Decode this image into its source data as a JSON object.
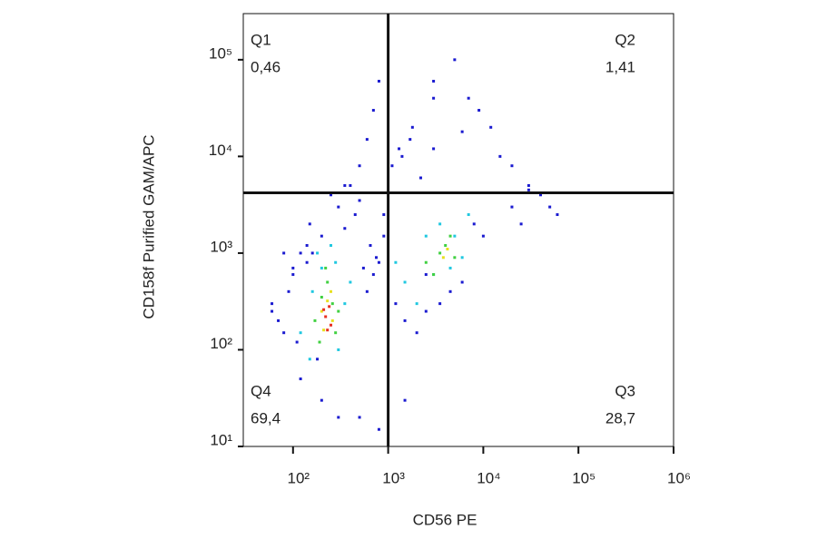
{
  "chart_data": {
    "type": "scatter",
    "x_label": "CD56 PE",
    "y_label": "CD158f Purified GAM/APC",
    "xscale": "log",
    "yscale": "log",
    "xlim": [
      30,
      1000000
    ],
    "ylim": [
      10,
      300000
    ],
    "xticks": [
      {
        "value": 100,
        "label": "10²"
      },
      {
        "value": 1000,
        "label": "10³"
      },
      {
        "value": 10000,
        "label": "10⁴"
      },
      {
        "value": 100000,
        "label": "10⁵"
      },
      {
        "value": 1000000,
        "label": "10⁶"
      }
    ],
    "yticks": [
      {
        "value": 10,
        "label": "10¹"
      },
      {
        "value": 100,
        "label": "10²"
      },
      {
        "value": 1000,
        "label": "10³"
      },
      {
        "value": 10000,
        "label": "10⁴"
      },
      {
        "value": 100000,
        "label": "10⁵"
      }
    ],
    "gate_x": 1000,
    "gate_y": 4200,
    "quadrants": {
      "names": [
        "Q1",
        "Q2",
        "Q3",
        "Q4"
      ],
      "values": [
        0.46,
        1.41,
        28.7,
        69.4
      ],
      "value_labels": [
        "0,46",
        "1,41",
        "28,7",
        "69,4"
      ]
    },
    "series": [
      {
        "color": "#1a1ad0",
        "x": [
          60,
          80,
          100,
          120,
          150,
          180,
          300,
          400,
          500,
          600,
          700,
          800,
          900,
          90,
          70,
          110,
          140,
          350,
          450,
          550,
          650,
          750,
          1200,
          1500,
          2000,
          2500,
          3000,
          5000,
          7000,
          9000,
          12000,
          15000,
          20000,
          30000,
          40000,
          50000,
          60000,
          1100,
          1300,
          1700,
          2200,
          8000,
          10000,
          600,
          700,
          800,
          900,
          500,
          350,
          250,
          200,
          160,
          140,
          120,
          2500,
          3500,
          4500,
          6000,
          3000,
          1800,
          1400,
          20000,
          30000,
          25000,
          500,
          800,
          1500,
          3000,
          6000,
          100,
          80,
          60,
          200,
          300
        ],
        "values": [
          300,
          150,
          600,
          1000,
          2000,
          80,
          3000,
          5000,
          8000,
          15000,
          30000,
          60000,
          1500,
          400,
          200,
          120,
          1200,
          1800,
          2500,
          700,
          1200,
          900,
          300,
          200,
          150,
          250,
          60000,
          100000,
          40000,
          30000,
          20000,
          10000,
          8000,
          5000,
          4000,
          3000,
          2500,
          8000,
          12000,
          15000,
          6000,
          2000,
          1500,
          400,
          600,
          800,
          2500,
          3500,
          5000,
          4000,
          1500,
          1000,
          800,
          50,
          600,
          300,
          400,
          500,
          40000,
          20000,
          10000,
          3000,
          4500,
          2000,
          20,
          15,
          30,
          12000,
          18000,
          700,
          1000,
          250,
          30,
          20
        ]
      },
      {
        "color": "#20c8e0",
        "x": [
          120,
          160,
          200,
          280,
          350,
          400,
          180,
          250,
          300,
          150,
          1500,
          2500,
          3500,
          5000,
          6000,
          2000,
          3000,
          4500,
          1200,
          7000
        ],
        "values": [
          150,
          400,
          700,
          800,
          300,
          500,
          1000,
          1200,
          100,
          80,
          500,
          1500,
          2000,
          1500,
          900,
          300,
          600,
          700,
          800,
          2500
        ]
      },
      {
        "color": "#40d040",
        "x": [
          170,
          200,
          230,
          260,
          300,
          190,
          280,
          220,
          2500,
          3500,
          4000,
          5000,
          3000,
          4500
        ],
        "values": [
          200,
          350,
          500,
          300,
          250,
          120,
          150,
          700,
          800,
          1000,
          1200,
          900,
          600,
          1500
        ]
      },
      {
        "color": "#e8e020",
        "x": [
          200,
          230,
          260,
          210,
          250,
          3800,
          4200
        ],
        "values": [
          250,
          320,
          200,
          160,
          400,
          900,
          1100
        ]
      },
      {
        "color": "#e83020",
        "x": [
          220,
          240,
          250,
          230,
          210
        ],
        "values": [
          220,
          280,
          180,
          160,
          260
        ]
      }
    ]
  }
}
